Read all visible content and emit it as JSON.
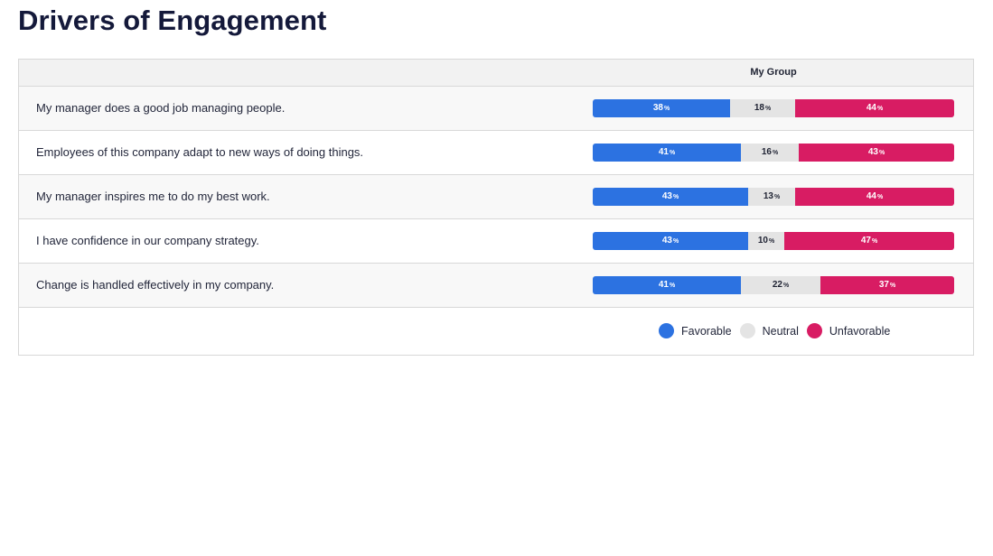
{
  "page": {
    "title": "Drivers of Engagement"
  },
  "table": {
    "group_header": "My Group",
    "pct_symbol": "%",
    "rows": [
      {
        "label": "My manager does a good job managing people.",
        "favorable": "38",
        "neutral": "18",
        "unfavorable": "44"
      },
      {
        "label": "Employees of this company adapt to new ways of doing things.",
        "favorable": "41",
        "neutral": "16",
        "unfavorable": "43"
      },
      {
        "label": "My manager inspires me to do my best work.",
        "favorable": "43",
        "neutral": "13",
        "unfavorable": "44"
      },
      {
        "label": "I have confidence in our company strategy.",
        "favorable": "43",
        "neutral": "10",
        "unfavorable": "47"
      },
      {
        "label": "Change is handled effectively in my company.",
        "favorable": "41",
        "neutral": "22",
        "unfavorable": "37"
      }
    ]
  },
  "legend": {
    "favorable": "Favorable",
    "neutral": "Neutral",
    "unfavorable": "Unfavorable"
  },
  "colors": {
    "favorable": "#2c72e1",
    "neutral": "#e4e4e4",
    "unfavorable": "#d81c63",
    "title": "#14193a"
  }
}
